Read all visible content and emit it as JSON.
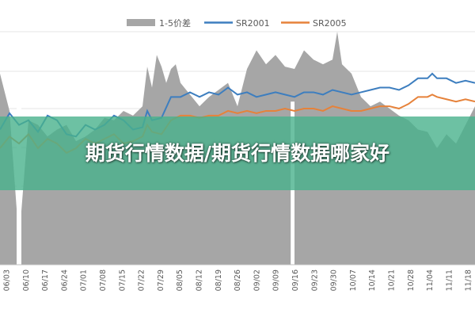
{
  "overlay": {
    "title": "期货行情数据/期货行情数据哪家好"
  },
  "colors": {
    "spread": "#a6a6a6",
    "sr2001": "#3d7ebf",
    "sr2005": "#e6823a",
    "banner": "#48b28c"
  },
  "chart_data": {
    "type": "area",
    "legend_position": "top",
    "grid": true,
    "x_tick_labels": [
      "06/03",
      "06/10",
      "06/17",
      "06/24",
      "07/01",
      "07/08",
      "07/15",
      "07/22",
      "07/29",
      "08/05",
      "08/12",
      "08/19",
      "08/26",
      "09/02",
      "09/09",
      "09/16",
      "09/23",
      "09/30",
      "10/07",
      "10/14",
      "10/21",
      "10/28",
      "11/04",
      "11/11",
      "11/18"
    ],
    "ylim": [
      0,
      100
    ],
    "series": [
      {
        "name": "1-5价差",
        "type": "area",
        "color": "#a6a6a6",
        "values": [
          [
            0,
            82
          ],
          [
            2,
            66
          ],
          [
            4,
            10
          ],
          [
            6,
            62
          ],
          [
            8,
            60
          ],
          [
            10,
            55
          ],
          [
            12,
            58
          ],
          [
            14,
            60
          ],
          [
            16,
            53
          ],
          [
            18,
            55
          ],
          [
            20,
            58
          ],
          [
            22,
            63
          ],
          [
            24,
            62
          ],
          [
            26,
            66
          ],
          [
            28,
            64
          ],
          [
            30,
            68
          ],
          [
            31,
            85
          ],
          [
            32,
            76
          ],
          [
            33,
            90
          ],
          [
            34,
            85
          ],
          [
            35,
            78
          ],
          [
            36,
            84
          ],
          [
            37,
            86
          ],
          [
            38,
            78
          ],
          [
            40,
            73
          ],
          [
            42,
            68
          ],
          [
            44,
            72
          ],
          [
            46,
            75
          ],
          [
            48,
            78
          ],
          [
            50,
            68
          ],
          [
            52,
            84
          ],
          [
            54,
            92
          ],
          [
            56,
            86
          ],
          [
            58,
            90
          ],
          [
            60,
            85
          ],
          [
            62,
            84
          ],
          [
            64,
            92
          ],
          [
            66,
            88
          ],
          [
            68,
            86
          ],
          [
            70,
            88
          ],
          [
            71,
            100
          ],
          [
            72,
            86
          ],
          [
            74,
            82
          ],
          [
            76,
            72
          ],
          [
            78,
            68
          ],
          [
            80,
            70
          ],
          [
            82,
            67
          ],
          [
            84,
            64
          ],
          [
            86,
            62
          ],
          [
            88,
            58
          ],
          [
            90,
            57
          ],
          [
            92,
            50
          ],
          [
            94,
            56
          ],
          [
            96,
            52
          ],
          [
            98,
            60
          ],
          [
            100,
            68
          ]
        ],
        "gaps": [
          {
            "x": 3.5,
            "to": 4.5
          },
          {
            "x": 61.2,
            "to": 62.0
          }
        ]
      },
      {
        "name": "SR2001",
        "type": "line",
        "color": "#3d7ebf",
        "values": [
          [
            0,
            58
          ],
          [
            2,
            65
          ],
          [
            4,
            60
          ],
          [
            6,
            62
          ],
          [
            8,
            57
          ],
          [
            10,
            64
          ],
          [
            12,
            62
          ],
          [
            14,
            56
          ],
          [
            16,
            55
          ],
          [
            18,
            60
          ],
          [
            20,
            58
          ],
          [
            22,
            60
          ],
          [
            24,
            64
          ],
          [
            26,
            62
          ],
          [
            28,
            58
          ],
          [
            30,
            59
          ],
          [
            31,
            66
          ],
          [
            32,
            62
          ],
          [
            34,
            63
          ],
          [
            36,
            72
          ],
          [
            38,
            72
          ],
          [
            40,
            74
          ],
          [
            42,
            72
          ],
          [
            44,
            74
          ],
          [
            46,
            73
          ],
          [
            48,
            76
          ],
          [
            50,
            73
          ],
          [
            52,
            74
          ],
          [
            54,
            72
          ],
          [
            56,
            73
          ],
          [
            58,
            74
          ],
          [
            60,
            73
          ],
          [
            62,
            72
          ],
          [
            64,
            74
          ],
          [
            66,
            74
          ],
          [
            68,
            73
          ],
          [
            70,
            75
          ],
          [
            72,
            74
          ],
          [
            74,
            73
          ],
          [
            76,
            74
          ],
          [
            78,
            75
          ],
          [
            80,
            76
          ],
          [
            82,
            76
          ],
          [
            84,
            75
          ],
          [
            86,
            77
          ],
          [
            88,
            80
          ],
          [
            90,
            80
          ],
          [
            91,
            82
          ],
          [
            92,
            80
          ],
          [
            94,
            80
          ],
          [
            96,
            78
          ],
          [
            98,
            79
          ],
          [
            100,
            78
          ]
        ]
      },
      {
        "name": "SR2005",
        "type": "line",
        "color": "#e6823a",
        "values": [
          [
            0,
            50
          ],
          [
            2,
            55
          ],
          [
            4,
            52
          ],
          [
            6,
            56
          ],
          [
            8,
            50
          ],
          [
            10,
            54
          ],
          [
            12,
            52
          ],
          [
            14,
            48
          ],
          [
            16,
            50
          ],
          [
            18,
            54
          ],
          [
            20,
            52
          ],
          [
            22,
            54
          ],
          [
            24,
            56
          ],
          [
            26,
            52
          ],
          [
            28,
            53
          ],
          [
            30,
            55
          ],
          [
            31,
            60
          ],
          [
            32,
            57
          ],
          [
            34,
            56
          ],
          [
            36,
            62
          ],
          [
            38,
            64
          ],
          [
            40,
            64
          ],
          [
            42,
            63
          ],
          [
            44,
            64
          ],
          [
            46,
            64
          ],
          [
            48,
            66
          ],
          [
            50,
            65
          ],
          [
            52,
            66
          ],
          [
            54,
            65
          ],
          [
            56,
            66
          ],
          [
            58,
            66
          ],
          [
            60,
            67
          ],
          [
            62,
            66
          ],
          [
            64,
            67
          ],
          [
            66,
            67
          ],
          [
            68,
            66
          ],
          [
            70,
            68
          ],
          [
            72,
            67
          ],
          [
            74,
            66
          ],
          [
            76,
            66
          ],
          [
            78,
            67
          ],
          [
            80,
            68
          ],
          [
            82,
            68
          ],
          [
            84,
            67
          ],
          [
            86,
            69
          ],
          [
            88,
            72
          ],
          [
            90,
            72
          ],
          [
            91,
            73
          ],
          [
            92,
            72
          ],
          [
            94,
            71
          ],
          [
            96,
            70
          ],
          [
            98,
            71
          ],
          [
            100,
            70
          ]
        ]
      }
    ]
  }
}
